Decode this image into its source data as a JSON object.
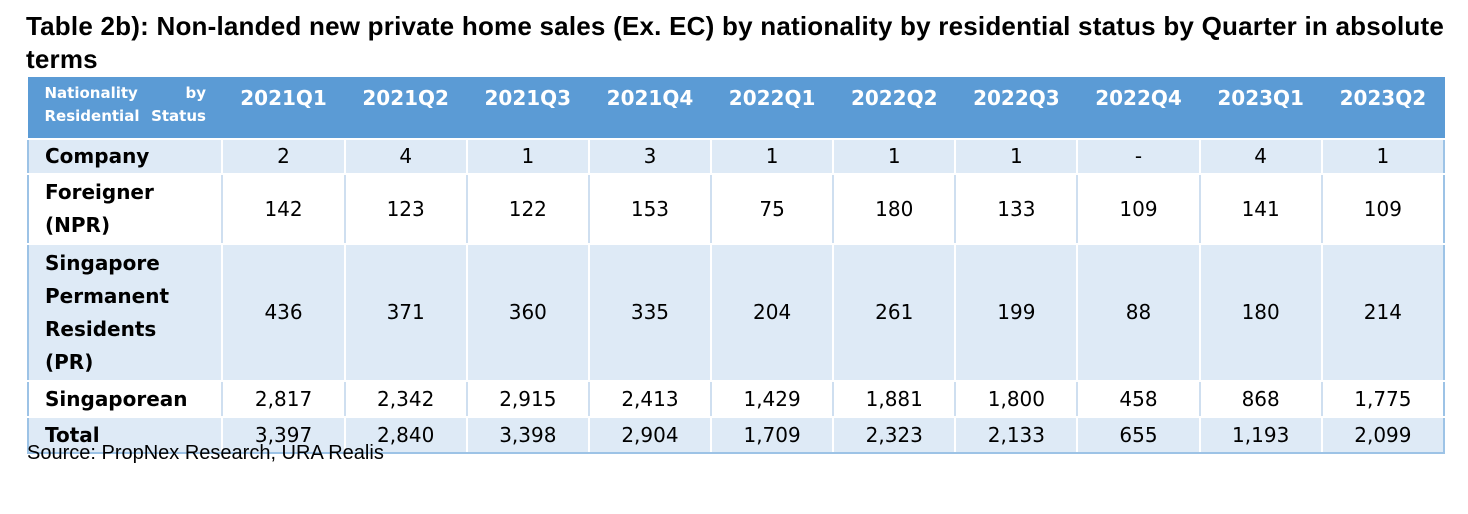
{
  "title": "Table 2b): Non-landed new private home sales (Ex. EC) by nationality by residential status by Quarter in absolute terms",
  "table": {
    "corner_header": "Nationality by Residential Status",
    "columns": [
      "2021Q1",
      "2021Q2",
      "2021Q3",
      "2021Q4",
      "2022Q1",
      "2022Q2",
      "2022Q3",
      "2022Q4",
      "2023Q1",
      "2023Q2"
    ],
    "rows": [
      {
        "label": "Company",
        "values": [
          "2",
          "4",
          "1",
          "3",
          "1",
          "1",
          "1",
          "-",
          "4",
          "1"
        ]
      },
      {
        "label": "Foreigner (NPR)",
        "values": [
          "142",
          "123",
          "122",
          "153",
          "75",
          "180",
          "133",
          "109",
          "141",
          "109"
        ]
      },
      {
        "label": "Singapore Permanent Residents (PR)",
        "values": [
          "436",
          "371",
          "360",
          "335",
          "204",
          "261",
          "199",
          "88",
          "180",
          "214"
        ]
      },
      {
        "label": "Singaporean",
        "values": [
          "2,817",
          "2,342",
          "2,915",
          "2,413",
          "1,429",
          "1,881",
          "1,800",
          "458",
          "868",
          "1,775"
        ]
      },
      {
        "label": "Total",
        "values": [
          "3,397",
          "2,840",
          "3,398",
          "2,904",
          "1,709",
          "2,323",
          "2,133",
          "655",
          "1,193",
          "2,099"
        ]
      }
    ]
  },
  "source": "Source: PropNex Research, URA Realis",
  "colors": {
    "header_bg": "#5b9bd5",
    "header_text": "#ffffff",
    "band_row_bg": "#deeaf6",
    "plain_row_bg": "#ffffff"
  }
}
